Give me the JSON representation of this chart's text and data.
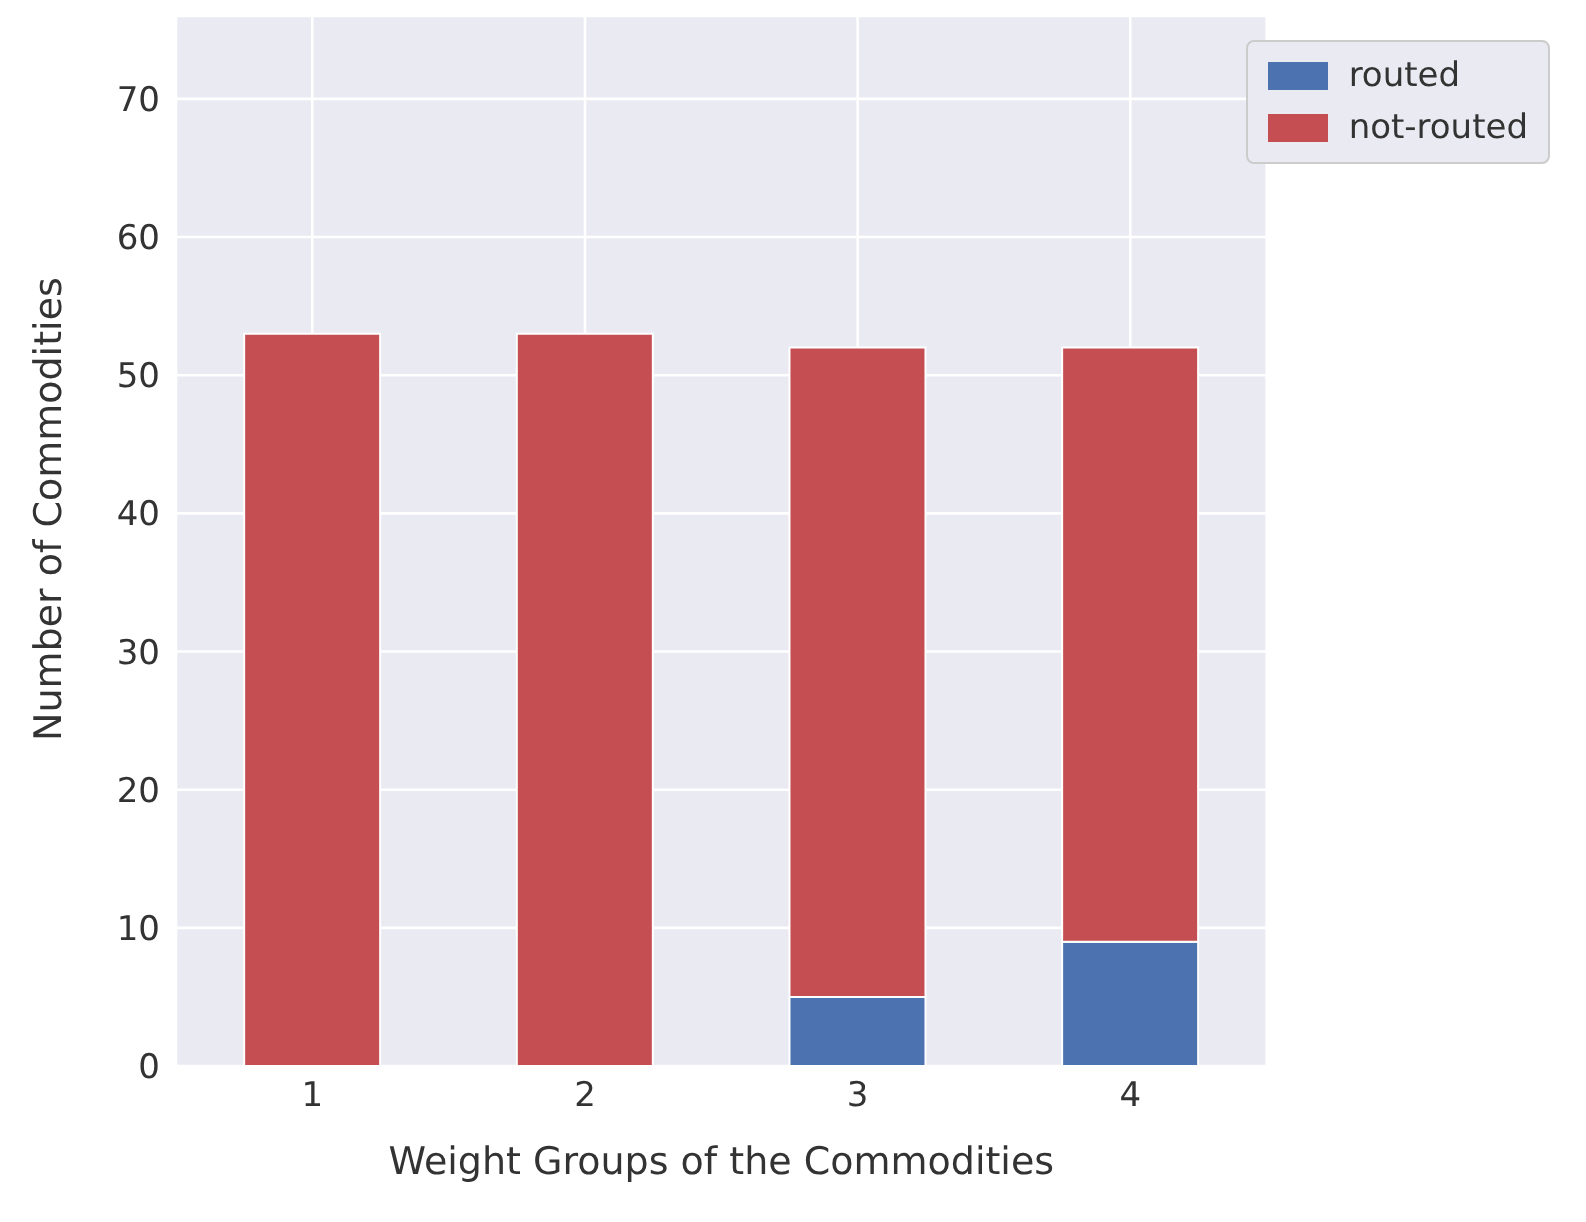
{
  "chart_data": {
    "type": "bar",
    "stacked": true,
    "xlabel": "Weight Groups of the Commodities",
    "ylabel": "Number of Commodities",
    "categories": [
      "1",
      "2",
      "3",
      "4"
    ],
    "series": [
      {
        "name": "routed",
        "color": "#4c72b0",
        "values": [
          0,
          0,
          5,
          9
        ]
      },
      {
        "name": "not-routed",
        "color": "#c44e52",
        "values": [
          53,
          53,
          47,
          43
        ]
      }
    ],
    "ylim": [
      0,
      76
    ],
    "yticks": [
      0,
      10,
      20,
      30,
      40,
      50,
      60,
      70
    ],
    "grid": true,
    "legend": "top right"
  }
}
